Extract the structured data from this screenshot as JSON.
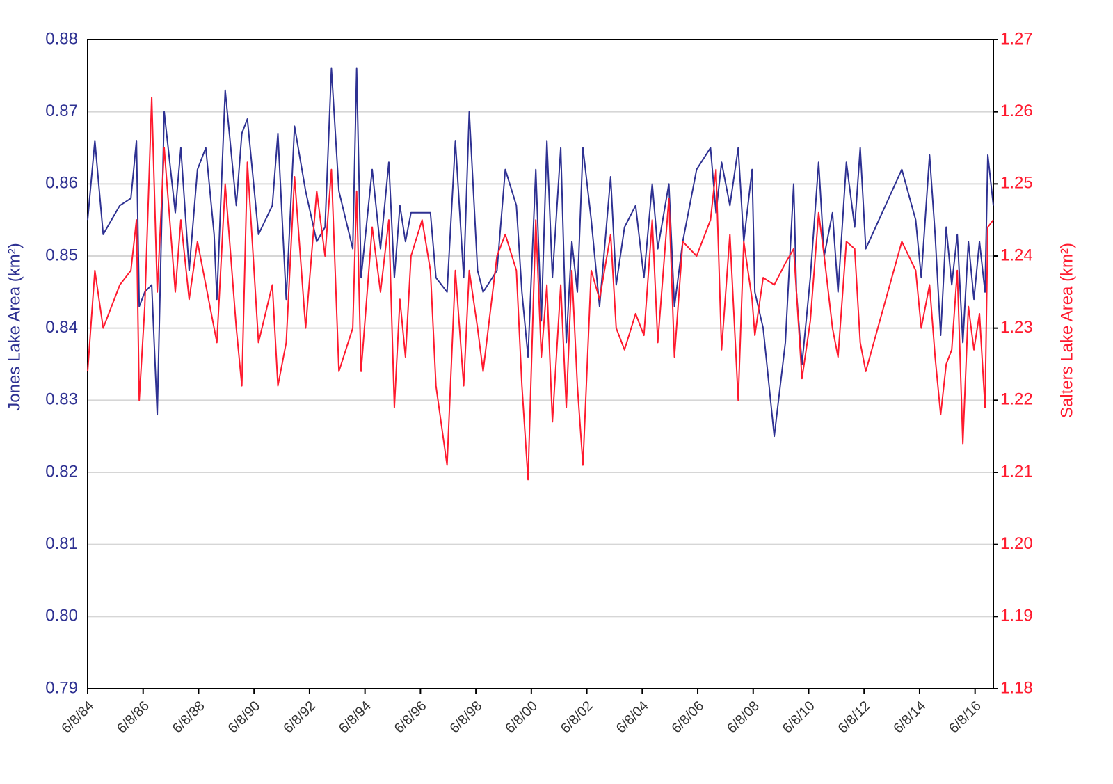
{
  "chart_data": {
    "type": "line",
    "y_label": "Jones Lake Area (km²)",
    "y2_label": "Salters Lake Area (km²)",
    "x": [
      1984.44,
      1984.7,
      1985.0,
      1985.6,
      1986.0,
      1986.2,
      1986.3,
      1986.5,
      1986.75,
      1986.95,
      1987.2,
      1987.6,
      1987.8,
      1988.1,
      1988.4,
      1988.7,
      1989.0,
      1989.1,
      1989.4,
      1989.8,
      1990.0,
      1990.2,
      1990.6,
      1991.1,
      1991.3,
      1991.6,
      1991.9,
      1992.3,
      1992.7,
      1993.0,
      1993.23,
      1993.5,
      1994.0,
      1994.14,
      1994.3,
      1994.7,
      1995.0,
      1995.3,
      1995.5,
      1995.7,
      1995.9,
      1996.1,
      1996.5,
      1996.8,
      1997.0,
      1997.4,
      1997.7,
      1998.0,
      1998.2,
      1998.5,
      1998.7,
      1999.2,
      1999.5,
      1999.9,
      2000.1,
      2000.32,
      2000.6,
      2000.8,
      2001.0,
      2001.2,
      2001.5,
      2001.7,
      2001.9,
      2002.1,
      2002.3,
      2002.6,
      2002.9,
      2003.3,
      2003.5,
      2003.8,
      2004.2,
      2004.5,
      2004.8,
      2005.0,
      2005.4,
      2005.6,
      2005.9,
      2006.4,
      2006.9,
      2007.1,
      2007.3,
      2007.6,
      2007.9,
      2008.1,
      2008.4,
      2008.5,
      2008.8,
      2009.2,
      2009.6,
      2009.9,
      2010.0,
      2010.2,
      2010.5,
      2010.8,
      2011.0,
      2011.3,
      2011.5,
      2011.8,
      2012.1,
      2012.3,
      2012.5,
      2013.8,
      2014.3,
      2014.5,
      2014.8,
      2015.0,
      2015.2,
      2015.4,
      2015.6,
      2015.8,
      2016.0,
      2016.2,
      2016.4,
      2016.6,
      2016.8,
      2016.9,
      2017.1
    ],
    "series": [
      {
        "color": "#2e3192",
        "values": [
          0.855,
          0.866,
          0.853,
          0.857,
          0.858,
          0.866,
          0.843,
          0.845,
          0.846,
          0.828,
          0.87,
          0.856,
          0.865,
          0.848,
          0.862,
          0.865,
          0.853,
          0.844,
          0.873,
          0.857,
          0.867,
          0.869,
          0.853,
          0.857,
          0.867,
          0.844,
          0.868,
          0.859,
          0.852,
          0.854,
          0.876,
          0.859,
          0.851,
          0.876,
          0.847,
          0.862,
          0.851,
          0.863,
          0.847,
          0.857,
          0.852,
          0.856,
          0.856,
          0.856,
          0.847,
          0.845,
          0.866,
          0.847,
          0.87,
          0.848,
          0.845,
          0.848,
          0.862,
          0.857,
          0.845,
          0.836,
          0.862,
          0.841,
          0.866,
          0.847,
          0.865,
          0.838,
          0.852,
          0.845,
          0.865,
          0.855,
          0.843,
          0.861,
          0.846,
          0.854,
          0.857,
          0.847,
          0.86,
          0.851,
          0.86,
          0.843,
          0.852,
          0.862,
          0.865,
          0.856,
          0.863,
          0.857,
          0.865,
          0.852,
          0.862,
          0.845,
          0.84,
          0.825,
          0.838,
          0.86,
          0.845,
          0.835,
          0.847,
          0.863,
          0.85,
          0.856,
          0.845,
          0.863,
          0.854,
          0.865,
          0.851,
          0.862,
          0.855,
          0.847,
          0.864,
          0.853,
          0.839,
          0.854,
          0.846,
          0.853,
          0.838,
          0.852,
          0.844,
          0.852,
          0.845,
          0.864,
          0.857
        ]
      },
      {
        "color": "#ff1a2e",
        "axis": "y2",
        "values": [
          1.224,
          1.238,
          1.23,
          1.236,
          1.238,
          1.245,
          1.22,
          1.233,
          1.262,
          1.235,
          1.255,
          1.235,
          1.245,
          1.234,
          1.242,
          1.236,
          1.23,
          1.228,
          1.25,
          1.23,
          1.222,
          1.253,
          1.228,
          1.236,
          1.222,
          1.228,
          1.251,
          1.23,
          1.249,
          1.24,
          1.252,
          1.224,
          1.23,
          1.249,
          1.224,
          1.244,
          1.235,
          1.245,
          1.219,
          1.234,
          1.226,
          1.24,
          1.245,
          1.238,
          1.222,
          1.211,
          1.238,
          1.222,
          1.238,
          1.23,
          1.224,
          1.24,
          1.243,
          1.238,
          1.222,
          1.209,
          1.245,
          1.226,
          1.236,
          1.217,
          1.236,
          1.219,
          1.238,
          1.222,
          1.211,
          1.238,
          1.234,
          1.243,
          1.23,
          1.227,
          1.232,
          1.229,
          1.245,
          1.228,
          1.248,
          1.226,
          1.242,
          1.24,
          1.245,
          1.252,
          1.227,
          1.243,
          1.22,
          1.242,
          1.234,
          1.229,
          1.237,
          1.236,
          1.239,
          1.241,
          1.235,
          1.223,
          1.231,
          1.246,
          1.24,
          1.23,
          1.226,
          1.242,
          1.241,
          1.228,
          1.224,
          1.242,
          1.238,
          1.23,
          1.236,
          1.226,
          1.218,
          1.225,
          1.227,
          1.238,
          1.214,
          1.233,
          1.227,
          1.232,
          1.219,
          1.244,
          1.245
        ]
      }
    ],
    "xlim": [
      1984.44,
      2017.1
    ],
    "xticks": [
      {
        "value": 1984.44,
        "label": "6/8/84"
      },
      {
        "value": 1986.44,
        "label": "6/8/86"
      },
      {
        "value": 1988.44,
        "label": "6/8/88"
      },
      {
        "value": 1990.44,
        "label": "6/8/90"
      },
      {
        "value": 1992.44,
        "label": "6/8/92"
      },
      {
        "value": 1994.44,
        "label": "6/8/94"
      },
      {
        "value": 1996.44,
        "label": "6/8/96"
      },
      {
        "value": 1998.44,
        "label": "6/8/98"
      },
      {
        "value": 2000.44,
        "label": "6/8/00"
      },
      {
        "value": 2002.44,
        "label": "6/8/02"
      },
      {
        "value": 2004.44,
        "label": "6/8/04"
      },
      {
        "value": 2006.44,
        "label": "6/8/06"
      },
      {
        "value": 2008.44,
        "label": "6/8/08"
      },
      {
        "value": 2010.44,
        "label": "6/8/10"
      },
      {
        "value": 2012.44,
        "label": "6/8/12"
      },
      {
        "value": 2014.44,
        "label": "6/8/14"
      },
      {
        "value": 2016.44,
        "label": "6/8/16"
      }
    ],
    "ylim": [
      0.79,
      0.88
    ],
    "yticks": [
      0.79,
      {
        "value": 0.8,
        "label": "0.80"
      },
      0.81,
      0.82,
      0.83,
      0.84,
      0.85,
      0.86,
      0.87,
      0.88
    ],
    "y2lim": [
      1.18,
      1.27
    ],
    "y2ticks": [
      1.18,
      1.19,
      {
        "value": 1.2,
        "label": "1.20"
      },
      1.21,
      1.22,
      1.23,
      1.24,
      1.25,
      1.26,
      1.27
    ],
    "grid": true
  }
}
